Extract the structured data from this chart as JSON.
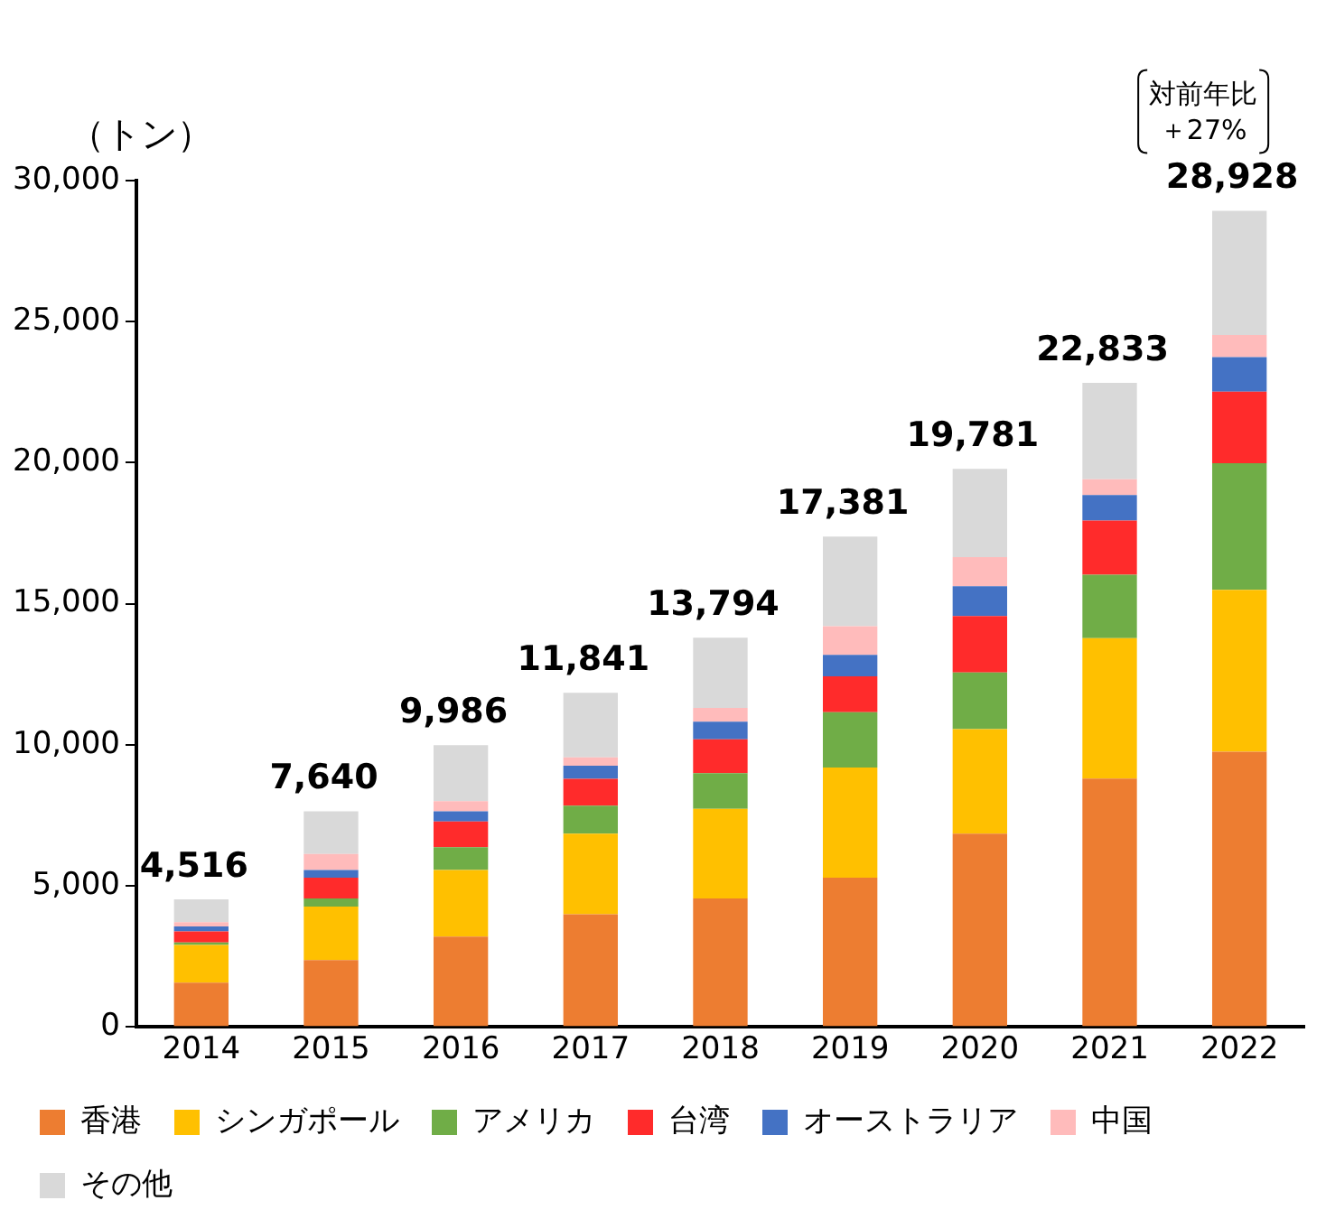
{
  "chart_data": {
    "type": "bar",
    "stacked": true,
    "ylabel": "（トン）",
    "categories": [
      "2014",
      "2015",
      "2016",
      "2017",
      "2018",
      "2019",
      "2020",
      "2021",
      "2022"
    ],
    "series": [
      {
        "name": "香港",
        "color": "#ed7d31",
        "values": [
          1570,
          2370,
          3200,
          3990,
          4550,
          5290,
          6850,
          8800,
          9750
        ]
      },
      {
        "name": "シンガポール",
        "color": "#ffc000",
        "values": [
          1330,
          1890,
          2360,
          2860,
          3180,
          3900,
          3700,
          4980,
          5740
        ]
      },
      {
        "name": "アメリカ",
        "color": "#70ad47",
        "values": [
          90,
          290,
          810,
          990,
          1260,
          1960,
          2010,
          2250,
          4490
        ]
      },
      {
        "name": "台湾",
        "color": "#ff2b2b",
        "values": [
          390,
          740,
          910,
          950,
          1200,
          1280,
          2000,
          1920,
          2540
        ]
      },
      {
        "name": "オーストラリア",
        "color": "#4472c4",
        "values": [
          180,
          270,
          360,
          470,
          630,
          760,
          1060,
          900,
          1220
        ]
      },
      {
        "name": "中国",
        "color": "#ffbbbb",
        "values": [
          150,
          570,
          360,
          290,
          490,
          1010,
          1030,
          560,
          790
        ]
      },
      {
        "name": "その他",
        "color": "#d9d9d9",
        "values": [
          806,
          1510,
          1986,
          2291,
          2484,
          3181,
          3131,
          3423,
          4398
        ]
      }
    ],
    "totals": [
      "4,516",
      "7,640",
      "9,986",
      "11,841",
      "13,794",
      "17,381",
      "19,781",
      "22,833",
      "28,928"
    ],
    "annotations": [
      "対前年比",
      "＋27%"
    ],
    "ylim": [
      0,
      30000
    ],
    "yticks": [
      {
        "value": 0,
        "label": "0"
      },
      {
        "value": 5000,
        "label": "5,000"
      },
      {
        "value": 10000,
        "label": "10,000"
      },
      {
        "value": 15000,
        "label": "15,000"
      },
      {
        "value": 20000,
        "label": "20,000"
      },
      {
        "value": 25000,
        "label": "25,000"
      },
      {
        "value": 30000,
        "label": "30,000"
      }
    ],
    "grid": false,
    "legend": "bottom"
  }
}
